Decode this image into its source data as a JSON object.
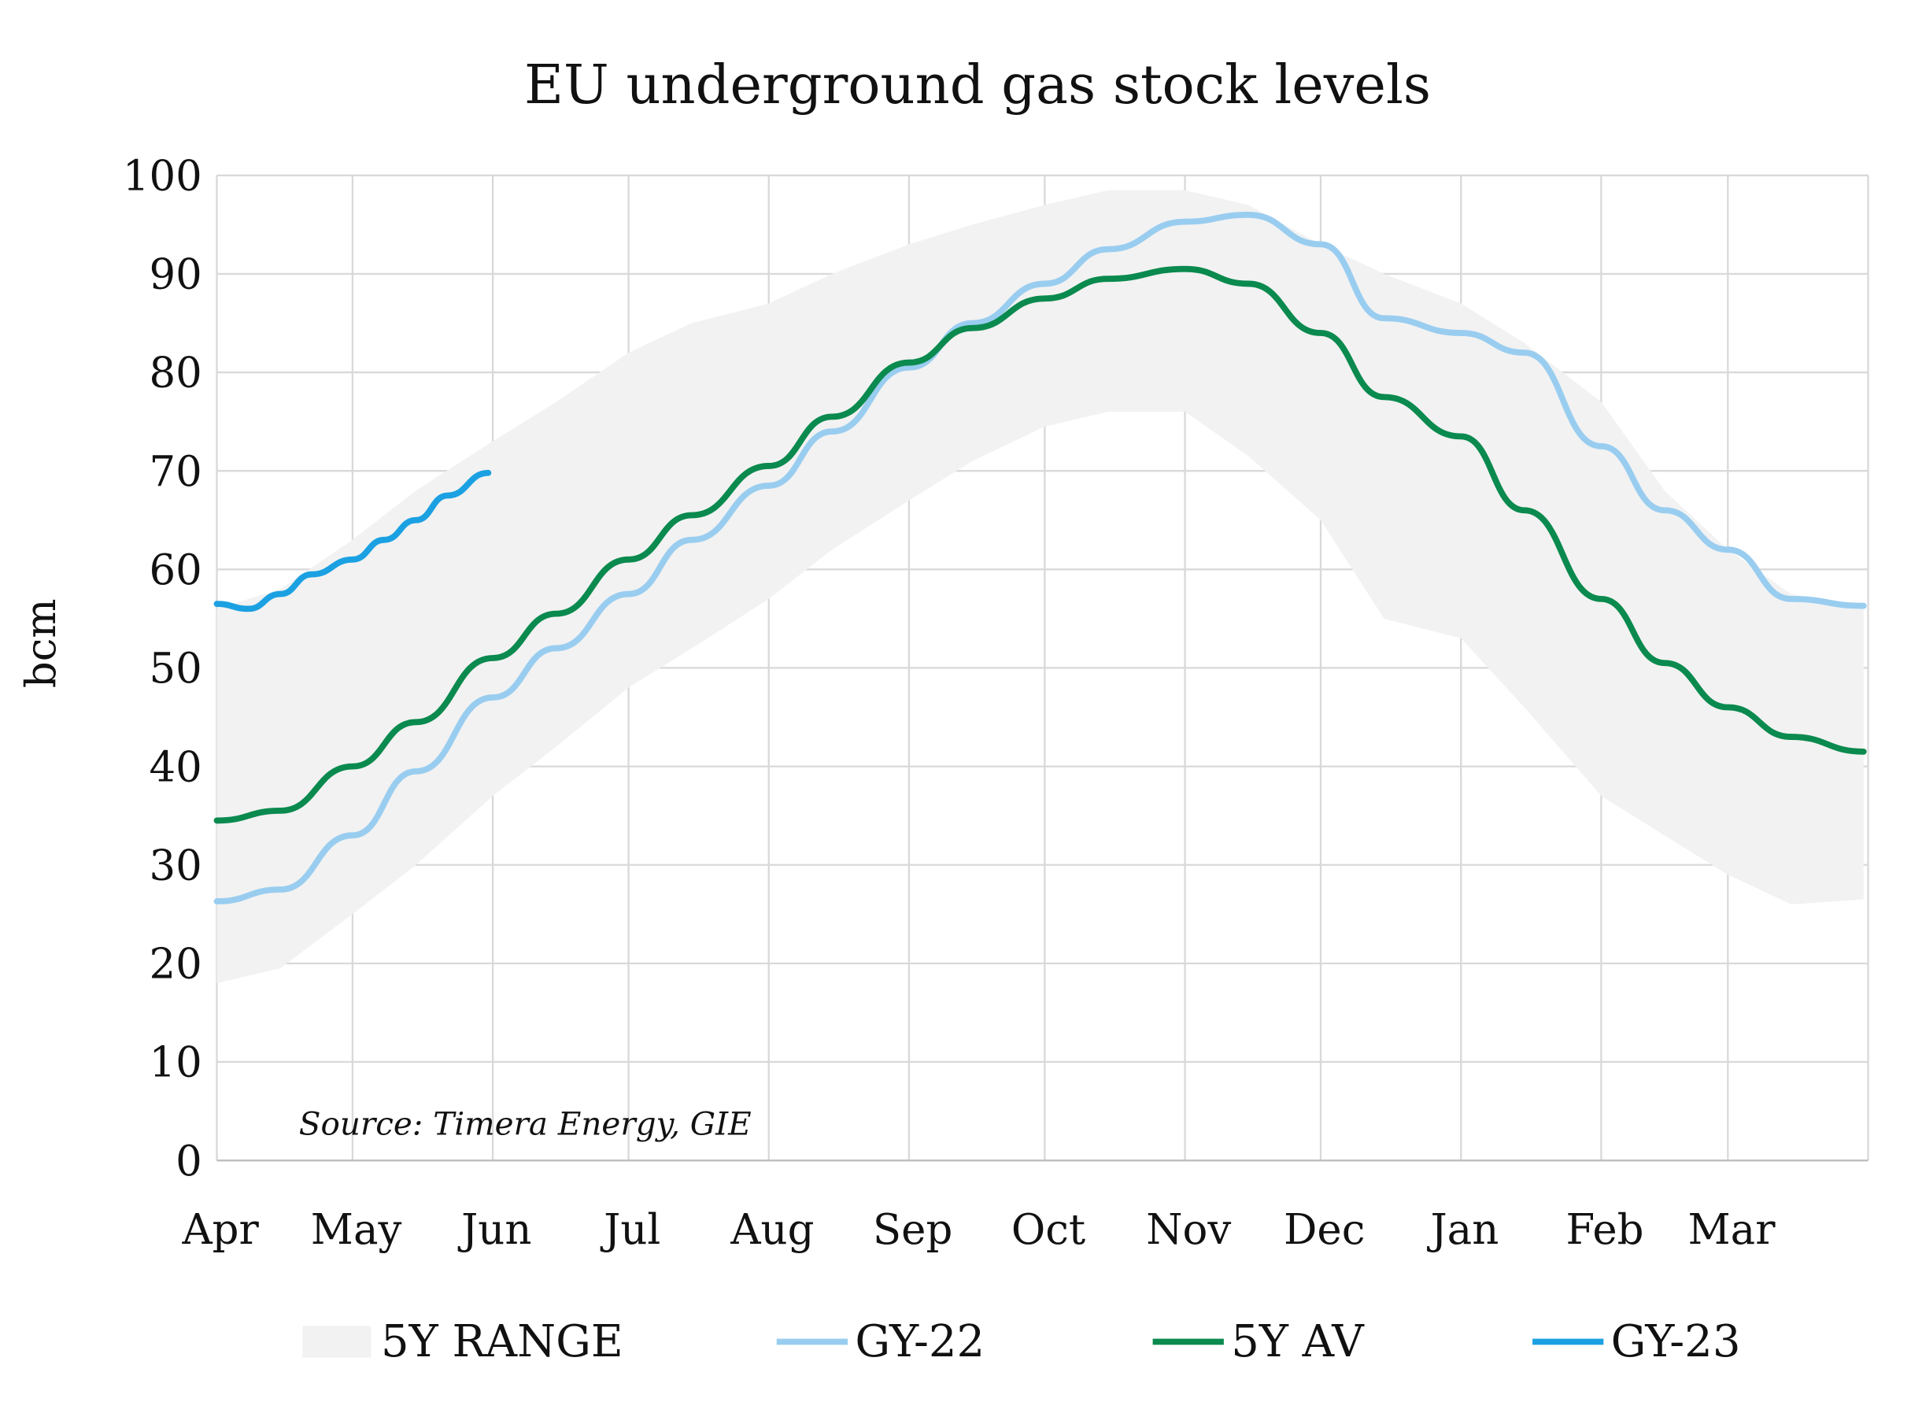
{
  "chart_data": {
    "type": "line",
    "title": "EU underground gas stock levels",
    "ylabel": "bcm",
    "xlabel": "",
    "ylim": [
      0,
      100
    ],
    "yticks": [
      "0",
      "10",
      "20",
      "30",
      "40",
      "50",
      "60",
      "70",
      "80",
      "90",
      "100"
    ],
    "xticks": [
      "Apr",
      "May",
      "Jun",
      "Jul",
      "Aug",
      "Sep",
      "Oct",
      "Nov",
      "Dec",
      "Jan",
      "Feb",
      "Mar"
    ],
    "grid": true,
    "legend_placement": "bottom",
    "annotation": "Source: Timera Energy, GIE",
    "x": [
      "Apr 1",
      "Apr 15",
      "May 1",
      "May 15",
      "Jun 1",
      "Jun 15",
      "Jul 1",
      "Jul 15",
      "Aug 1",
      "Aug 15",
      "Sep 1",
      "Sep 15",
      "Oct 1",
      "Oct 15",
      "Nov 1",
      "Nov 15",
      "Dec 1",
      "Dec 15",
      "Jan 1",
      "Jan 15",
      "Feb 1",
      "Feb 15",
      "Mar 1",
      "Mar 15",
      "Mar 31"
    ],
    "range": {
      "name": "5Y RANGE",
      "color": "#f2f2f2",
      "upper": [
        56,
        58,
        63,
        68,
        73,
        77,
        82,
        85,
        87,
        90,
        93,
        95,
        97,
        98.5,
        98.5,
        97,
        93,
        90,
        87,
        83,
        77,
        68,
        62,
        57.5,
        56
      ],
      "lower": [
        18,
        19.5,
        25,
        30,
        37,
        42,
        48,
        52,
        57,
        62,
        67,
        71,
        74.5,
        76,
        76,
        71.5,
        65,
        55,
        53,
        46,
        37,
        33,
        29,
        26,
        26.5
      ]
    },
    "series": [
      {
        "name": "GY-22",
        "color": "#99cdf0",
        "values": [
          26.3,
          27.5,
          33,
          39.5,
          47,
          52,
          57.5,
          63,
          68.5,
          74,
          80.5,
          85,
          89,
          92.5,
          95.3,
          96,
          93,
          85.5,
          84,
          82,
          72.5,
          66,
          62,
          57,
          56.3
        ]
      },
      {
        "name": "5Y AV",
        "color": "#0a8a4e",
        "values": [
          34.5,
          35.5,
          40,
          44.5,
          51,
          55.5,
          61,
          65.5,
          70.5,
          75.5,
          81,
          84.5,
          87.5,
          89.5,
          90.5,
          89,
          84,
          77.5,
          73.5,
          66,
          57,
          50.5,
          46,
          43,
          41.5
        ]
      },
      {
        "name": "GY-23",
        "color": "#1ba1e2",
        "x": [
          "Apr 1",
          "Apr 8",
          "Apr 15",
          "Apr 22",
          "May 1",
          "May 8",
          "May 15",
          "May 22",
          "May 31"
        ],
        "values": [
          56.5,
          56,
          57.5,
          59.5,
          61,
          63,
          65,
          67.5,
          69.8
        ]
      }
    ]
  }
}
